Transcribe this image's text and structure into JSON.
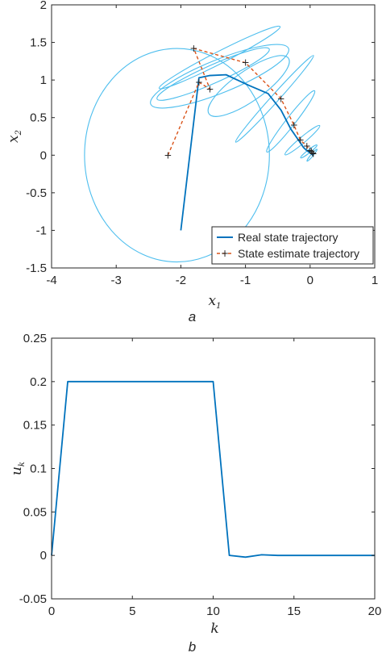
{
  "chart_data": [
    {
      "type": "line",
      "panel_label": "a",
      "xlabel": "x",
      "xlabel_sub": "1",
      "ylabel": "x",
      "ylabel_sub": "2",
      "xlim": [
        -4,
        1
      ],
      "ylim": [
        -1.5,
        2
      ],
      "xticks": [
        "-4",
        "-3",
        "-2",
        "-1",
        "0",
        "1"
      ],
      "yticks": [
        "-1.5",
        "-1",
        "-0.5",
        "0",
        "0.5",
        "1",
        "1.5",
        "2"
      ],
      "legend": {
        "placement": "bottom-right"
      },
      "colors": {
        "real": "#0072BD",
        "estimate": "#D95319",
        "marker": "#7E2F8E",
        "ellipse": "#4DBEEE"
      },
      "series": [
        {
          "name": "Real state trajectory",
          "style": "solid",
          "x": [
            -2.0,
            -1.72,
            -1.55,
            -1.3,
            -0.95,
            -0.65,
            -0.45,
            -0.3,
            -0.18,
            -0.1,
            -0.05,
            0.0,
            0.02,
            0.03,
            0.04
          ],
          "y": [
            -1.0,
            1.03,
            1.06,
            1.07,
            0.93,
            0.82,
            0.6,
            0.35,
            0.2,
            0.1,
            0.06,
            0.03,
            0.02,
            0.01,
            0.0
          ]
        },
        {
          "name": "State estimate trajectory",
          "style": "dashed",
          "x": [
            -2.2,
            -1.72,
            -1.55,
            -1.8,
            -1.0,
            -0.45,
            -0.25,
            -0.15,
            -0.05,
            0.0,
            0.02,
            0.04,
            0.05
          ],
          "y": [
            0.0,
            0.97,
            0.88,
            1.42,
            1.23,
            0.75,
            0.4,
            0.2,
            0.12,
            0.06,
            0.05,
            0.03,
            0.02
          ]
        }
      ],
      "ellipses": [
        {
          "cx": -2.06,
          "cy": 0.0,
          "rx": 1.43,
          "ry": 1.42,
          "angle": 0
        },
        {
          "cx": -1.4,
          "cy": 1.3,
          "rx": 1.05,
          "ry": 0.08,
          "angle": -27
        },
        {
          "cx": -1.4,
          "cy": 1.05,
          "rx": 1.15,
          "ry": 0.22,
          "angle": -22
        },
        {
          "cx": -1.5,
          "cy": 1.08,
          "rx": 0.95,
          "ry": 0.12,
          "angle": -24
        },
        {
          "cx": -0.95,
          "cy": 0.92,
          "rx": 0.75,
          "ry": 0.2,
          "angle": -35
        },
        {
          "cx": -0.55,
          "cy": 0.75,
          "rx": 0.9,
          "ry": 0.05,
          "angle": -48
        },
        {
          "cx": -0.3,
          "cy": 0.45,
          "rx": 0.6,
          "ry": 0.06,
          "angle": -52
        },
        {
          "cx": -0.12,
          "cy": 0.2,
          "rx": 0.35,
          "ry": 0.04,
          "angle": -40
        },
        {
          "cx": -0.02,
          "cy": 0.05,
          "rx": 0.16,
          "ry": 0.02,
          "angle": -38
        },
        {
          "cx": 0.03,
          "cy": 0.0,
          "rx": 0.12,
          "ry": 0.015,
          "angle": -50
        }
      ]
    },
    {
      "type": "line",
      "panel_label": "b",
      "xlabel": "k",
      "ylabel": "u",
      "ylabel_sub": "k",
      "xlim": [
        0,
        20
      ],
      "ylim": [
        -0.05,
        0.25
      ],
      "xticks": [
        "0",
        "5",
        "10",
        "15",
        "20"
      ],
      "yticks": [
        "-0.05",
        "0",
        "0.05",
        "0.1",
        "0.15",
        "0.2",
        "0.25"
      ],
      "color": "#0072BD",
      "x": [
        0,
        1,
        2,
        3,
        4,
        5,
        6,
        7,
        8,
        9,
        10,
        11,
        12,
        13,
        14,
        15,
        16,
        17,
        18,
        19,
        20
      ],
      "y": [
        0,
        0.2,
        0.2,
        0.2,
        0.2,
        0.2,
        0.2,
        0.2,
        0.2,
        0.2,
        0.2,
        0.0,
        -0.002,
        0.0007,
        0.0,
        0.0,
        0.0,
        0.0,
        0.0,
        0.0,
        0.0
      ]
    }
  ]
}
